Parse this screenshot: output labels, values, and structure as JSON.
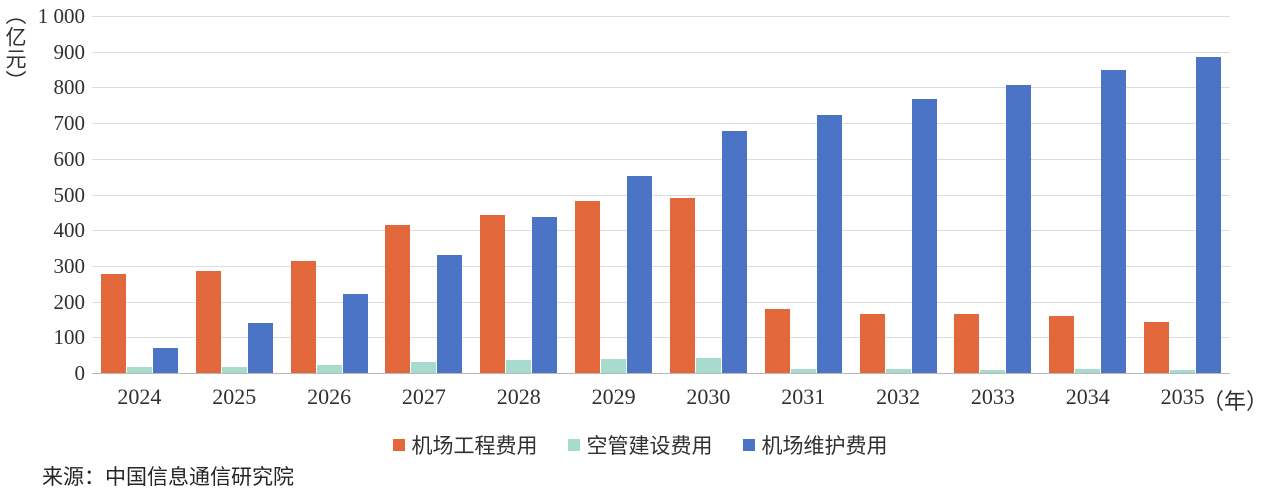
{
  "chart_data": {
    "type": "bar",
    "title": "",
    "xlabel": "",
    "ylabel": "亿元",
    "y_unit_label": "（亿元）",
    "x_unit_label": "（年）",
    "ylim": [
      0,
      1000
    ],
    "grid": true,
    "legend_position": "bottom",
    "y_ticks": [
      {
        "value": 0,
        "label": "0"
      },
      {
        "value": 100,
        "label": "100"
      },
      {
        "value": 200,
        "label": "200"
      },
      {
        "value": 300,
        "label": "300"
      },
      {
        "value": 400,
        "label": "400"
      },
      {
        "value": 500,
        "label": "500"
      },
      {
        "value": 600,
        "label": "600"
      },
      {
        "value": 700,
        "label": "700"
      },
      {
        "value": 800,
        "label": "800"
      },
      {
        "value": 900,
        "label": "900"
      },
      {
        "value": 1000,
        "label": "1 000"
      }
    ],
    "categories": [
      "2024",
      "2025",
      "2026",
      "2027",
      "2028",
      "2029",
      "2030",
      "2031",
      "2032",
      "2033",
      "2034",
      "2035"
    ],
    "series": [
      {
        "name": "机场工程费用",
        "color": "#e2683b",
        "values": [
          276,
          285,
          313,
          416,
          444,
          483,
          491,
          180,
          164,
          164,
          160,
          142
        ]
      },
      {
        "name": "空管建设费用",
        "color": "#a7dbcd",
        "values": [
          18,
          18,
          22,
          32,
          36,
          40,
          42,
          12,
          10,
          8,
          10,
          8
        ]
      },
      {
        "name": "机场维护费用",
        "color": "#4b74c6",
        "values": [
          70,
          140,
          220,
          330,
          438,
          553,
          678,
          724,
          768,
          806,
          848,
          884
        ]
      }
    ]
  },
  "colors": {
    "gridline": "#dcdcdc",
    "axis_line": "#b8b8b8",
    "text": "#303030"
  },
  "source": {
    "label": "来源：中国信息通信研究院"
  }
}
